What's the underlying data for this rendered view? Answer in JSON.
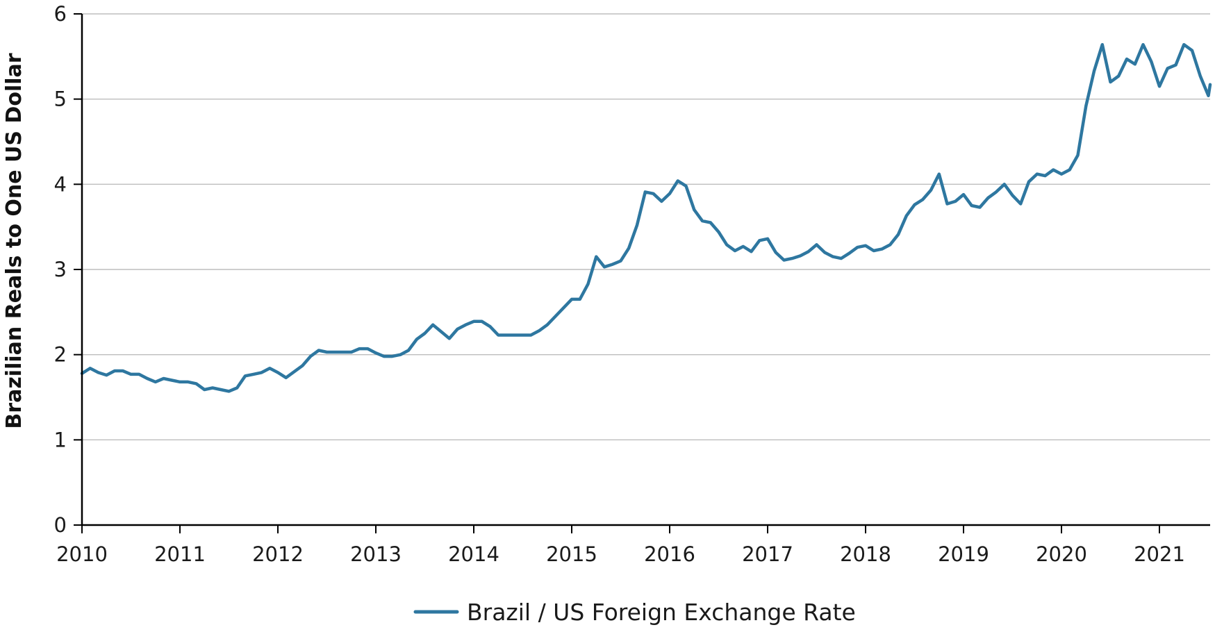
{
  "chart_data": {
    "type": "line",
    "title": "",
    "xlabel": "",
    "ylabel": "Brazilian Reals to One US Dollar",
    "x_ticks": [
      "2010",
      "2011",
      "2012",
      "2013",
      "2014",
      "2015",
      "2016",
      "2017",
      "2018",
      "2019",
      "2020",
      "2021"
    ],
    "y_ticks": [
      "0",
      "1",
      "2",
      "3",
      "4",
      "5",
      "6"
    ],
    "xlim": [
      2010,
      2021.5
    ],
    "ylim": [
      0,
      6
    ],
    "grid": "horizontal",
    "legend_position": "bottom-center",
    "colors": {
      "series": "#2e77a0",
      "grid": "#bdbdbd",
      "axis": "#000000"
    },
    "series": [
      {
        "name": "Brazil / US Foreign Exchange Rate",
        "points": [
          [
            2010.0,
            1.78
          ],
          [
            2010.083,
            1.84
          ],
          [
            2010.167,
            1.79
          ],
          [
            2010.25,
            1.76
          ],
          [
            2010.333,
            1.81
          ],
          [
            2010.417,
            1.81
          ],
          [
            2010.5,
            1.77
          ],
          [
            2010.583,
            1.77
          ],
          [
            2010.667,
            1.72
          ],
          [
            2010.75,
            1.68
          ],
          [
            2010.833,
            1.72
          ],
          [
            2010.917,
            1.7
          ],
          [
            2011.0,
            1.68
          ],
          [
            2011.083,
            1.68
          ],
          [
            2011.167,
            1.66
          ],
          [
            2011.25,
            1.59
          ],
          [
            2011.333,
            1.61
          ],
          [
            2011.417,
            1.59
          ],
          [
            2011.5,
            1.57
          ],
          [
            2011.583,
            1.61
          ],
          [
            2011.667,
            1.75
          ],
          [
            2011.75,
            1.77
          ],
          [
            2011.833,
            1.79
          ],
          [
            2011.917,
            1.84
          ],
          [
            2012.0,
            1.79
          ],
          [
            2012.083,
            1.73
          ],
          [
            2012.167,
            1.8
          ],
          [
            2012.25,
            1.87
          ],
          [
            2012.333,
            1.98
          ],
          [
            2012.417,
            2.05
          ],
          [
            2012.5,
            2.03
          ],
          [
            2012.583,
            2.03
          ],
          [
            2012.667,
            2.03
          ],
          [
            2012.75,
            2.03
          ],
          [
            2012.833,
            2.07
          ],
          [
            2012.917,
            2.07
          ],
          [
            2013.0,
            2.02
          ],
          [
            2013.083,
            1.98
          ],
          [
            2013.167,
            1.98
          ],
          [
            2013.25,
            2.0
          ],
          [
            2013.333,
            2.05
          ],
          [
            2013.417,
            2.18
          ],
          [
            2013.5,
            2.25
          ],
          [
            2013.583,
            2.35
          ],
          [
            2013.667,
            2.27
          ],
          [
            2013.75,
            2.19
          ],
          [
            2013.833,
            2.3
          ],
          [
            2013.917,
            2.35
          ],
          [
            2014.0,
            2.39
          ],
          [
            2014.083,
            2.39
          ],
          [
            2014.167,
            2.33
          ],
          [
            2014.25,
            2.23
          ],
          [
            2014.333,
            2.23
          ],
          [
            2014.417,
            2.23
          ],
          [
            2014.5,
            2.23
          ],
          [
            2014.583,
            2.23
          ],
          [
            2014.667,
            2.28
          ],
          [
            2014.75,
            2.35
          ],
          [
            2014.833,
            2.45
          ],
          [
            2014.917,
            2.55
          ],
          [
            2015.0,
            2.65
          ],
          [
            2015.083,
            2.65
          ],
          [
            2015.167,
            2.83
          ],
          [
            2015.25,
            3.15
          ],
          [
            2015.333,
            3.03
          ],
          [
            2015.417,
            3.06
          ],
          [
            2015.5,
            3.1
          ],
          [
            2015.583,
            3.25
          ],
          [
            2015.667,
            3.52
          ],
          [
            2015.75,
            3.91
          ],
          [
            2015.833,
            3.89
          ],
          [
            2015.917,
            3.8
          ],
          [
            2016.0,
            3.89
          ],
          [
            2016.083,
            4.04
          ],
          [
            2016.167,
            3.98
          ],
          [
            2016.25,
            3.7
          ],
          [
            2016.333,
            3.57
          ],
          [
            2016.417,
            3.55
          ],
          [
            2016.5,
            3.44
          ],
          [
            2016.583,
            3.29
          ],
          [
            2016.667,
            3.22
          ],
          [
            2016.75,
            3.27
          ],
          [
            2016.833,
            3.21
          ],
          [
            2016.917,
            3.34
          ],
          [
            2017.0,
            3.36
          ],
          [
            2017.083,
            3.2
          ],
          [
            2017.167,
            3.11
          ],
          [
            2017.25,
            3.13
          ],
          [
            2017.333,
            3.16
          ],
          [
            2017.417,
            3.21
          ],
          [
            2017.5,
            3.29
          ],
          [
            2017.583,
            3.2
          ],
          [
            2017.667,
            3.15
          ],
          [
            2017.75,
            3.13
          ],
          [
            2017.833,
            3.19
          ],
          [
            2017.917,
            3.26
          ],
          [
            2018.0,
            3.28
          ],
          [
            2018.083,
            3.22
          ],
          [
            2018.167,
            3.24
          ],
          [
            2018.25,
            3.29
          ],
          [
            2018.333,
            3.41
          ],
          [
            2018.417,
            3.63
          ],
          [
            2018.5,
            3.76
          ],
          [
            2018.583,
            3.82
          ],
          [
            2018.667,
            3.93
          ],
          [
            2018.75,
            4.12
          ],
          [
            2018.833,
            3.77
          ],
          [
            2018.917,
            3.8
          ],
          [
            2019.0,
            3.88
          ],
          [
            2019.083,
            3.75
          ],
          [
            2019.167,
            3.73
          ],
          [
            2019.25,
            3.84
          ],
          [
            2019.333,
            3.91
          ],
          [
            2019.417,
            4.0
          ],
          [
            2019.5,
            3.87
          ],
          [
            2019.583,
            3.77
          ],
          [
            2019.667,
            4.03
          ],
          [
            2019.75,
            4.12
          ],
          [
            2019.833,
            4.1
          ],
          [
            2019.917,
            4.17
          ],
          [
            2020.0,
            4.12
          ],
          [
            2020.083,
            4.17
          ],
          [
            2020.167,
            4.34
          ],
          [
            2020.25,
            4.92
          ],
          [
            2020.333,
            5.33
          ],
          [
            2020.417,
            5.64
          ],
          [
            2020.5,
            5.2
          ],
          [
            2020.583,
            5.27
          ],
          [
            2020.667,
            5.47
          ],
          [
            2020.75,
            5.41
          ],
          [
            2020.833,
            5.64
          ],
          [
            2020.917,
            5.44
          ],
          [
            2021.0,
            5.15
          ],
          [
            2021.083,
            5.36
          ],
          [
            2021.167,
            5.4
          ],
          [
            2021.25,
            5.64
          ],
          [
            2021.333,
            5.57
          ],
          [
            2021.417,
            5.27
          ],
          [
            2021.5,
            5.04
          ],
          [
            2021.583,
            5.17
          ]
        ]
      }
    ]
  }
}
